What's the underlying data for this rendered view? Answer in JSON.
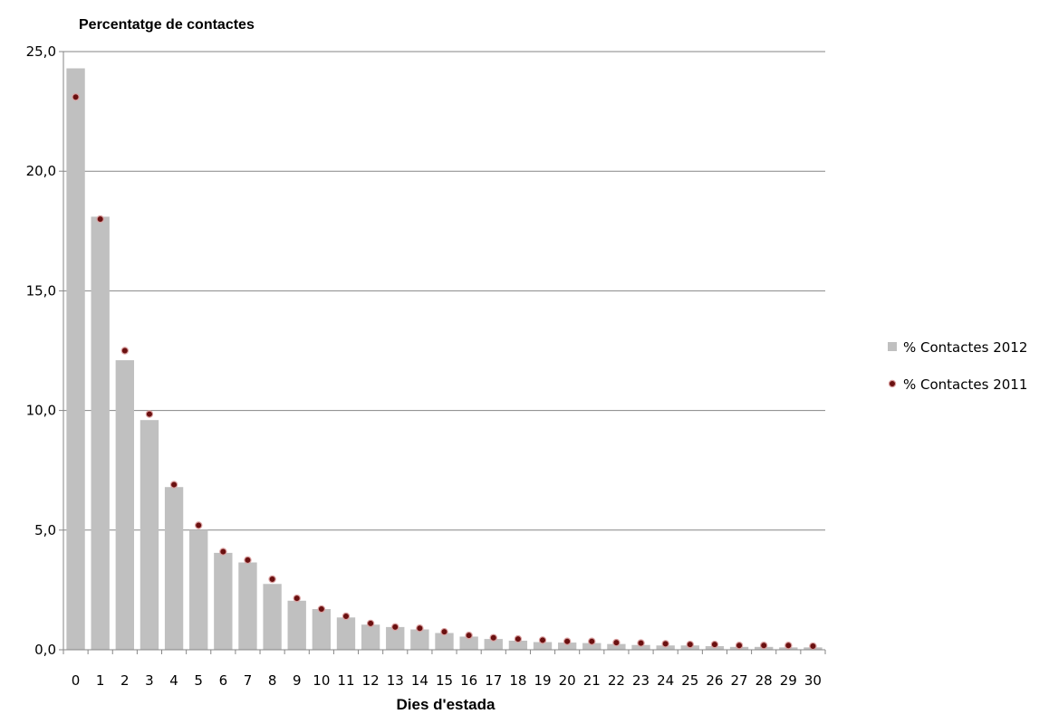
{
  "chart_data": {
    "type": "bar",
    "title": "Percentatge de contactes",
    "xlabel": "Dies d'estada",
    "ylabel": "",
    "ylim": [
      0,
      25
    ],
    "yticks": [
      "0,0",
      "5,0",
      "10,0",
      "15,0",
      "20,0",
      "25,0"
    ],
    "grid": true,
    "legend_position": "right",
    "categories": [
      "0",
      "1",
      "2",
      "3",
      "4",
      "5",
      "6",
      "7",
      "8",
      "9",
      "10",
      "11",
      "12",
      "13",
      "14",
      "15",
      "16",
      "17",
      "18",
      "19",
      "20",
      "21",
      "22",
      "23",
      "24",
      "25",
      "26",
      "27",
      "28",
      "29",
      "30"
    ],
    "series": [
      {
        "name": "% Contactes 2012",
        "kind": "bar",
        "color": "#c0c0c0",
        "values": [
          24.3,
          18.1,
          12.1,
          9.6,
          6.8,
          5.0,
          4.05,
          3.65,
          2.75,
          2.05,
          1.7,
          1.35,
          1.05,
          0.95,
          0.85,
          0.7,
          0.55,
          0.45,
          0.38,
          0.32,
          0.3,
          0.28,
          0.24,
          0.2,
          0.18,
          0.18,
          0.15,
          0.12,
          0.12,
          0.1,
          0.1
        ]
      },
      {
        "name": "% Contactes 2011",
        "kind": "marker",
        "color": "#6b1010",
        "values": [
          23.1,
          18.0,
          12.5,
          9.85,
          6.9,
          5.2,
          4.1,
          3.75,
          2.95,
          2.15,
          1.7,
          1.4,
          1.1,
          0.95,
          0.9,
          0.75,
          0.6,
          0.5,
          0.45,
          0.4,
          0.35,
          0.35,
          0.3,
          0.28,
          0.25,
          0.22,
          0.22,
          0.18,
          0.18,
          0.18,
          0.15
        ]
      }
    ]
  }
}
